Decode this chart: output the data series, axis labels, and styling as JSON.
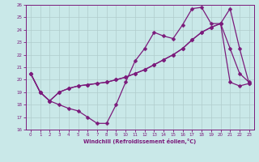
{
  "xlabel": "Windchill (Refroidissement éolien,°C)",
  "xlim": [
    -0.5,
    23.5
  ],
  "ylim": [
    16,
    26
  ],
  "xticks": [
    0,
    1,
    2,
    3,
    4,
    5,
    6,
    7,
    8,
    9,
    10,
    11,
    12,
    13,
    14,
    15,
    16,
    17,
    18,
    19,
    20,
    21,
    22,
    23
  ],
  "yticks": [
    16,
    17,
    18,
    19,
    20,
    21,
    22,
    23,
    24,
    25,
    26
  ],
  "bg_color": "#c9e8e8",
  "line_color": "#7b1a7b",
  "grid_color": "#b0cccc",
  "line1_x": [
    0,
    1,
    2,
    3,
    4,
    5,
    6,
    7,
    8,
    9,
    10,
    11,
    12,
    13,
    14,
    15,
    16,
    17,
    18,
    19,
    20,
    21,
    22,
    23
  ],
  "line1_y": [
    20.5,
    19.0,
    18.3,
    18.0,
    17.7,
    17.5,
    17.0,
    16.5,
    16.5,
    18.0,
    19.8,
    21.5,
    22.5,
    23.8,
    23.5,
    23.3,
    24.4,
    25.7,
    25.8,
    24.5,
    24.5,
    22.5,
    20.5,
    19.8
  ],
  "line2_x": [
    0,
    1,
    2,
    3,
    4,
    5,
    6,
    7,
    8,
    9,
    10,
    11,
    12,
    13,
    14,
    15,
    16,
    17,
    18,
    19,
    20,
    21,
    22,
    23
  ],
  "line2_y": [
    20.5,
    19.0,
    18.3,
    19.0,
    19.3,
    19.5,
    19.6,
    19.7,
    19.8,
    20.0,
    20.2,
    20.5,
    20.8,
    21.2,
    21.6,
    22.0,
    22.5,
    23.2,
    23.8,
    24.2,
    24.5,
    19.8,
    19.5,
    19.7
  ],
  "line3_x": [
    0,
    1,
    2,
    3,
    4,
    5,
    6,
    7,
    8,
    9,
    10,
    11,
    12,
    13,
    14,
    15,
    16,
    17,
    18,
    19,
    20,
    21,
    22,
    23
  ],
  "line3_y": [
    20.5,
    19.0,
    18.3,
    19.0,
    19.3,
    19.5,
    19.6,
    19.7,
    19.8,
    20.0,
    20.2,
    20.5,
    20.8,
    21.2,
    21.6,
    22.0,
    22.5,
    23.2,
    23.8,
    24.2,
    24.5,
    25.7,
    22.5,
    19.7
  ],
  "markersize": 2.5,
  "linewidth": 0.9
}
